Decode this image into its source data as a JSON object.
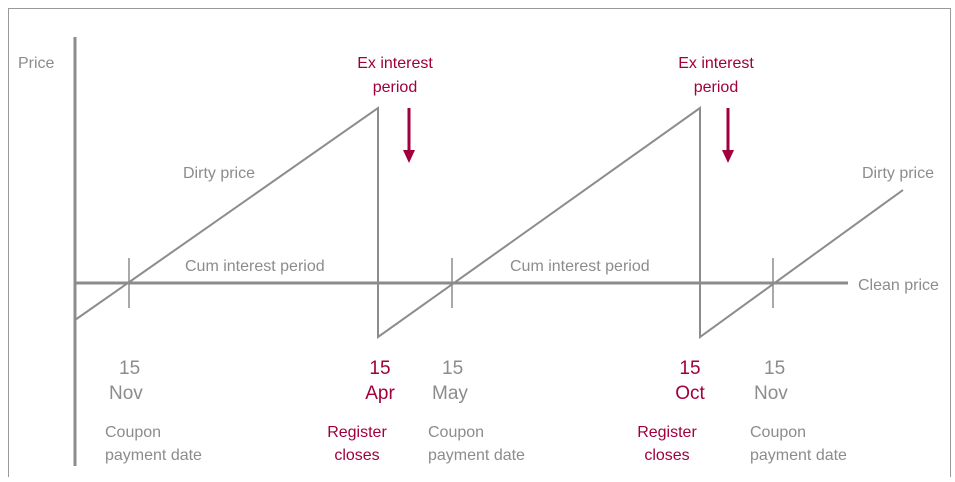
{
  "axis": {
    "y_label": "Price",
    "clean_price": "Clean price"
  },
  "curve_labels": {
    "dirty_price_1": "Dirty price",
    "dirty_price_2": "Dirty price",
    "cum_1": "Cum interest period",
    "cum_2": "Cum interest period"
  },
  "ex_interest": [
    [
      "Ex interest",
      "period"
    ],
    [
      "Ex interest",
      "period"
    ]
  ],
  "dates": [
    {
      "day": "15",
      "month": "Nov",
      "note": [
        "Coupon",
        "payment date"
      ]
    },
    {
      "day": "15",
      "month": "Apr",
      "note": [
        "Register",
        "closes"
      ]
    },
    {
      "day": "15",
      "month": "May",
      "note": [
        "Coupon",
        "payment date"
      ]
    },
    {
      "day": "15",
      "month": "Oct",
      "note": [
        "Register",
        "closes"
      ]
    },
    {
      "day": "15",
      "month": "Nov",
      "note": [
        "Coupon",
        "payment date"
      ]
    }
  ]
}
